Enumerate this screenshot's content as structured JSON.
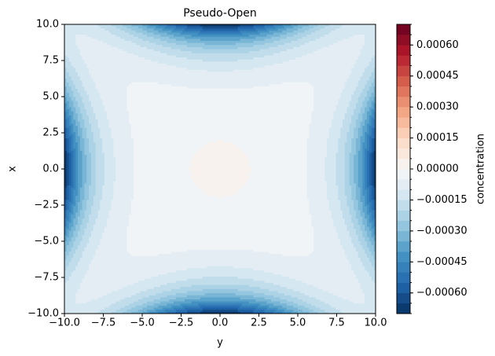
{
  "chart_data": {
    "type": "contourf",
    "title": "Pseudo-Open",
    "x_label": "y",
    "y_label": "x",
    "colorbar_label": "concentration",
    "colormap": "RdBu_r",
    "xlim": [
      -10,
      10
    ],
    "ylim": [
      -10,
      10
    ],
    "xticks": [
      {
        "value": -10,
        "label": "−10.0"
      },
      {
        "value": -7.5,
        "label": "−7.5"
      },
      {
        "value": -5,
        "label": "−5.0"
      },
      {
        "value": -2.5,
        "label": "−2.5"
      },
      {
        "value": 0,
        "label": "0.0"
      },
      {
        "value": 2.5,
        "label": "2.5"
      },
      {
        "value": 5,
        "label": "5.0"
      },
      {
        "value": 7.5,
        "label": "7.5"
      },
      {
        "value": 10,
        "label": "10.0"
      }
    ],
    "yticks": [
      {
        "value": -10,
        "label": "−10.0"
      },
      {
        "value": -7.5,
        "label": "−7.5"
      },
      {
        "value": -5,
        "label": "−5.0"
      },
      {
        "value": -2.5,
        "label": "−2.5"
      },
      {
        "value": 0,
        "label": "0.0"
      },
      {
        "value": 2.5,
        "label": "2.5"
      },
      {
        "value": 5,
        "label": "5.0"
      },
      {
        "value": 7.5,
        "label": "7.5"
      },
      {
        "value": 10,
        "label": "10.0"
      }
    ],
    "levels": [
      -0.0007,
      -0.00065,
      -0.0006,
      -0.00055,
      -0.0005,
      -0.00045,
      -0.0004,
      -0.00035,
      -0.0003,
      -0.00025,
      -0.0002,
      -0.00015,
      -0.0001,
      -5e-05,
      0,
      5e-05,
      0.0001,
      0.00015,
      0.0002,
      0.00025,
      0.0003,
      0.00035,
      0.0004,
      0.00045,
      0.0005,
      0.00055,
      0.0006,
      0.00065,
      0.0007
    ],
    "cticks": [
      {
        "value": -0.0006,
        "label": "−0.00060"
      },
      {
        "value": -0.00045,
        "label": "−0.00045"
      },
      {
        "value": -0.0003,
        "label": "−0.00030"
      },
      {
        "value": -0.00015,
        "label": "−0.00015"
      },
      {
        "value": 0,
        "label": "0.00000"
      },
      {
        "value": 0.00015,
        "label": "0.00015"
      },
      {
        "value": 0.0003,
        "label": "0.00030"
      },
      {
        "value": 0.00045,
        "label": "0.00045"
      },
      {
        "value": 0.0006,
        "label": "0.00060"
      }
    ]
  }
}
